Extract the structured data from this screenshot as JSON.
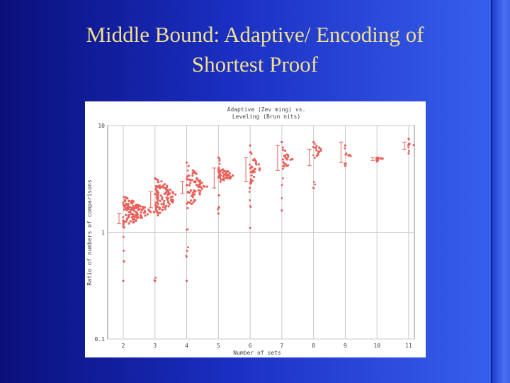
{
  "slide": {
    "title_line1": "Middle Bound: Adaptive/ Encoding of",
    "title_line2": "Shortest Proof"
  },
  "colors": {
    "background_dark": "#0a0f7a",
    "background_light": "#3a62ef",
    "title": "#f1df8f",
    "points": "#e8605a",
    "grid": "#c8c8c8"
  },
  "chart_data": {
    "type": "scatter",
    "title": "Adaptive (Zev ming) vs.",
    "subtitle": "Leveling (Brun nits)",
    "xlabel": "Number of sets",
    "ylabel": "Ratio of numbers of comparisons",
    "y_scale": "log",
    "xlim": [
      2,
      11
    ],
    "ylim": [
      0.1,
      10
    ],
    "x_ticks": [
      "2",
      "3",
      "4",
      "5",
      "6",
      "7",
      "8",
      "9",
      "10",
      "11"
    ],
    "y_ticks": [
      "10",
      "1",
      "0.1"
    ],
    "grid": true,
    "legend": "none",
    "columns": [
      {
        "x": 2,
        "center": 1.55,
        "min": 0.35,
        "max": 1.9,
        "err_low": 1.2,
        "err_high": 1.5,
        "density": 120
      },
      {
        "x": 3,
        "center": 2.15,
        "min": 0.35,
        "max": 3.2,
        "err_low": 1.7,
        "err_high": 2.4,
        "density": 95
      },
      {
        "x": 4,
        "center": 2.7,
        "min": 0.35,
        "max": 4.5,
        "err_low": 2.3,
        "err_high": 3.0,
        "density": 70
      },
      {
        "x": 5,
        "center": 3.4,
        "min": 1.5,
        "max": 5.0,
        "err_low": 2.6,
        "err_high": 4.0,
        "density": 45
      },
      {
        "x": 6,
        "center": 4.0,
        "min": 1.1,
        "max": 6.5,
        "err_low": 3.0,
        "err_high": 5.0,
        "density": 28
      },
      {
        "x": 7,
        "center": 4.8,
        "min": 1.6,
        "max": 7.0,
        "err_low": 3.8,
        "err_high": 6.5,
        "density": 20
      },
      {
        "x": 8,
        "center": 5.8,
        "min": 2.6,
        "max": 7.0,
        "err_low": 4.2,
        "err_high": 6.0,
        "density": 12
      },
      {
        "x": 9,
        "center": 5.2,
        "min": 4.2,
        "max": 6.5,
        "err_low": 4.5,
        "err_high": 7.0,
        "density": 4
      },
      {
        "x": 10,
        "center": 4.9,
        "min": 4.6,
        "max": 5.0,
        "err_low": 4.7,
        "err_high": 5.0,
        "density": 3
      },
      {
        "x": 11,
        "center": 6.5,
        "min": 5.5,
        "max": 7.5,
        "err_low": 6.0,
        "err_high": 7.0,
        "density": 3
      }
    ]
  }
}
